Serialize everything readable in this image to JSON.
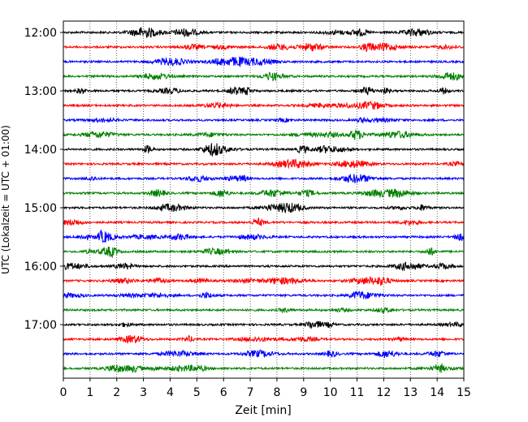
{
  "chart_data": {
    "type": "line",
    "title": "",
    "xlabel": "Zeit  [min]",
    "ylabel": "UTC (Lokalzeit = UTC + 01:00)",
    "xlim": [
      0,
      15
    ],
    "x_ticks": [
      "0",
      "1",
      "2",
      "3",
      "4",
      "5",
      "6",
      "7",
      "8",
      "9",
      "10",
      "11",
      "12",
      "13",
      "14",
      "15"
    ],
    "y_tick_labels": [
      "12:00",
      "13:00",
      "14:00",
      "15:00",
      "16:00",
      "17:00"
    ],
    "grid": "vertical dotted",
    "trace_interval_minutes": 15,
    "traces": [
      {
        "start": "12:00",
        "color": "#000000"
      },
      {
        "start": "12:15",
        "color": "#ff0000"
      },
      {
        "start": "12:30",
        "color": "#0000ff"
      },
      {
        "start": "12:45",
        "color": "#008000"
      },
      {
        "start": "13:00",
        "color": "#000000"
      },
      {
        "start": "13:15",
        "color": "#ff0000"
      },
      {
        "start": "13:30",
        "color": "#0000ff"
      },
      {
        "start": "13:45",
        "color": "#008000"
      },
      {
        "start": "14:00",
        "color": "#000000"
      },
      {
        "start": "14:15",
        "color": "#ff0000"
      },
      {
        "start": "14:30",
        "color": "#0000ff"
      },
      {
        "start": "14:45",
        "color": "#008000"
      },
      {
        "start": "15:00",
        "color": "#000000"
      },
      {
        "start": "15:15",
        "color": "#ff0000"
      },
      {
        "start": "15:30",
        "color": "#0000ff"
      },
      {
        "start": "15:45",
        "color": "#008000"
      },
      {
        "start": "16:00",
        "color": "#000000"
      },
      {
        "start": "16:15",
        "color": "#ff0000"
      },
      {
        "start": "16:30",
        "color": "#0000ff"
      },
      {
        "start": "16:45",
        "color": "#008000"
      },
      {
        "start": "17:00",
        "color": "#000000"
      },
      {
        "start": "17:15",
        "color": "#ff0000"
      },
      {
        "start": "17:30",
        "color": "#0000ff"
      },
      {
        "start": "17:45",
        "color": "#008000"
      }
    ]
  }
}
